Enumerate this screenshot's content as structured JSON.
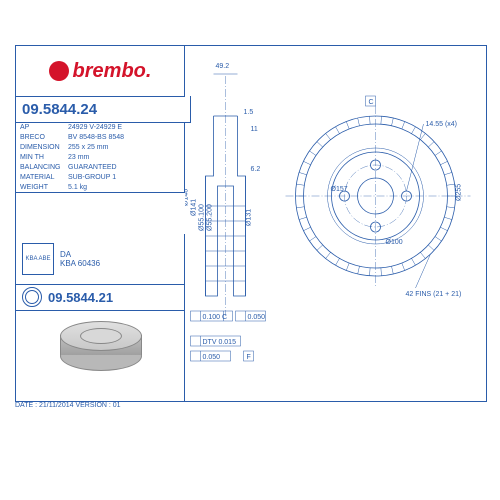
{
  "logo": "brembo.",
  "part_number": "09.5844.24",
  "alt_part_number": "09.5844.21",
  "specs": [
    {
      "label": "AP",
      "value": "24929 V-24929 E"
    },
    {
      "label": "BRECO",
      "value": "BV 8548-BS 8548"
    },
    {
      "label": "DIMENSION",
      "value": "255 x 25 mm"
    },
    {
      "label": "MIN TH",
      "value": "23 mm"
    },
    {
      "label": "BALANCING",
      "value": "GUARANTEED"
    },
    {
      "label": "MATERIAL",
      "value": "SUB-GROUP 1"
    },
    {
      "label": "WEIGHT",
      "value": "5.1 kg"
    }
  ],
  "cert": {
    "box": "KBA\nABE",
    "line1": "DA",
    "line2": "KBA 60436"
  },
  "footer": "DATE : 21/11/2014  VERSION : 01",
  "dims": {
    "top_offset": "49.2",
    "runout": "1.5",
    "width": "11",
    "chamfer": "6.2",
    "d148": "Ø148",
    "d141": "Ø141",
    "d55_100": "Ø55.100",
    "d55_200": "Ø55.200",
    "d131": "Ø131",
    "d157": "Ø157",
    "d100": "Ø100",
    "d255": "Ø255",
    "tol1": "0.100 C",
    "tol2": "0.050",
    "bolt": "14.55 (x4)",
    "dtv": "DTV 0.015",
    "flat": "0.050",
    "fins": "42 FINS (21 + 21)",
    "datum_f": "F",
    "datum_c": "C"
  },
  "colors": {
    "line": "#2a5caa",
    "accent": "#d4132a"
  }
}
